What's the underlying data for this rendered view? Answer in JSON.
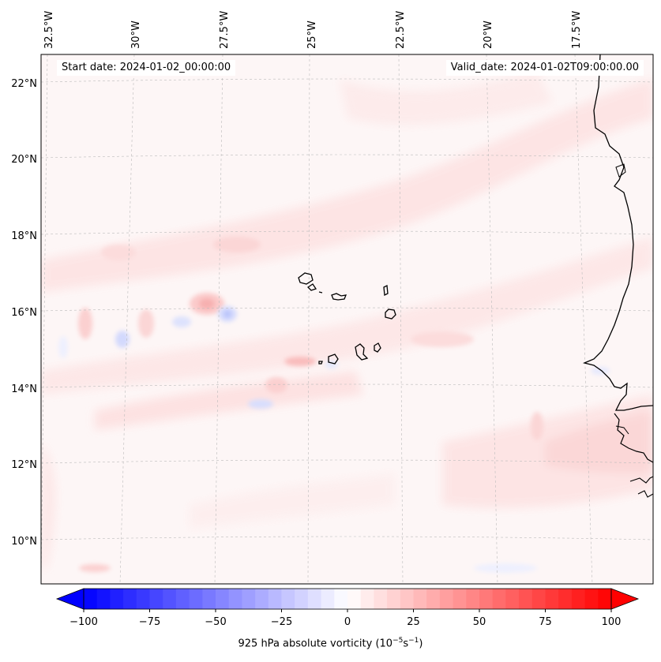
{
  "map": {
    "start_date": "Start date: 2024-01-02_00:00:00",
    "valid_date": "Valid_date: 2024-01-02T09:00:00.00",
    "longitude_labels": [
      "32.5°W",
      "30°W",
      "27.5°W",
      "25°W",
      "22.5°W",
      "20°W",
      "17.5°W"
    ],
    "latitude_labels": [
      "22°N",
      "20°N",
      "18°N",
      "16°N",
      "14°N",
      "12°N",
      "10°N"
    ],
    "field": "925 hPa absolute vorticity",
    "colors": {
      "background_tint": "#fdf6f6",
      "positive": "#ff0000",
      "negative": "#0000ff",
      "coastline": "#000000",
      "gridline": "#bbbbbb"
    }
  },
  "colorbar": {
    "ticks": [
      "−100",
      "−75",
      "−50",
      "−25",
      "0",
      "25",
      "50",
      "75",
      "100"
    ],
    "min": -100,
    "max": 100,
    "levels": 40,
    "label_main": "925 hPa absolute vorticity (10",
    "label_exp1": "−5",
    "label_mid": "s",
    "label_exp2": "−1",
    "label_end": ")"
  }
}
